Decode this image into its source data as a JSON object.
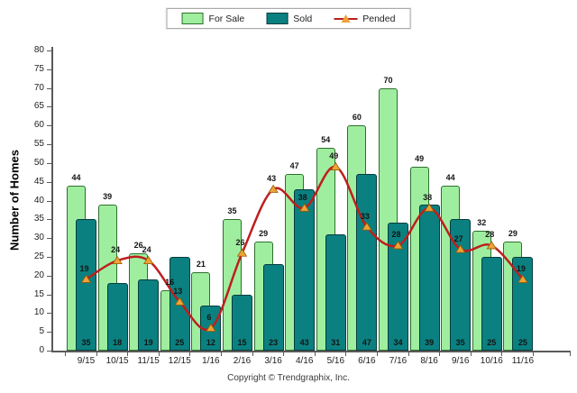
{
  "chart_data": {
    "type": "combo-bar-line",
    "categories": [
      "9/15",
      "10/15",
      "11/15",
      "12/15",
      "1/16",
      "2/16",
      "3/16",
      "4/16",
      "5/16",
      "6/16",
      "7/16",
      "8/16",
      "9/16",
      "10/16",
      "11/16"
    ],
    "series": [
      {
        "name": "For Sale",
        "type": "bar",
        "color": "#9FEE9F",
        "border_color": "#2E6F2E",
        "values": [
          44,
          39,
          26,
          16,
          21,
          35,
          29,
          47,
          54,
          60,
          70,
          49,
          44,
          32,
          29
        ]
      },
      {
        "name": "Sold",
        "type": "bar",
        "color": "#0B8080",
        "border_color": "#053C3C",
        "values": [
          35,
          18,
          19,
          25,
          12,
          15,
          23,
          43,
          31,
          47,
          34,
          39,
          35,
          25,
          25
        ]
      },
      {
        "name": "Pended",
        "type": "line",
        "color": "#BE1E1E",
        "marker_color": "#EDA338",
        "marker_border_color": "#9A5B00",
        "values": [
          19,
          24,
          24,
          13,
          6,
          26,
          43,
          38,
          49,
          33,
          28,
          38,
          27,
          28,
          19
        ]
      }
    ],
    "title": "",
    "xlabel": "",
    "ylabel": "Number of Homes",
    "ylim": [
      0,
      80
    ],
    "ytick_step": 5,
    "grid": false,
    "legend_position": "top-center",
    "value_labels_shown": true
  },
  "footer": {
    "copyright": "Copyright © Trendgraphix, Inc."
  }
}
